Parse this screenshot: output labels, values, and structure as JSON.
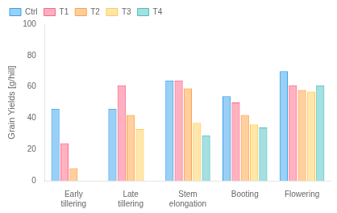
{
  "chart_data": {
    "type": "bar",
    "categories": [
      "Early\ntillering",
      "Late\ntillering",
      "Stem\nelongation",
      "Booting",
      "Flowering"
    ],
    "series": [
      {
        "name": "Ctrl",
        "values": [
          46,
          46,
          64,
          54,
          70
        ]
      },
      {
        "name": "T1",
        "values": [
          24,
          61,
          64,
          50,
          61
        ]
      },
      {
        "name": "T2",
        "values": [
          8,
          42,
          59,
          42,
          58
        ]
      },
      {
        "name": "T3",
        "values": [
          0,
          33,
          37,
          36,
          57
        ]
      },
      {
        "name": "T4",
        "values": [
          0,
          0,
          29,
          34,
          61
        ]
      }
    ],
    "ylabel": "Grain Yields [g/hill]",
    "ylim": [
      0,
      100
    ],
    "yticks": [
      0,
      20,
      40,
      60,
      80,
      100
    ],
    "grid": false,
    "legend": "upper left"
  }
}
